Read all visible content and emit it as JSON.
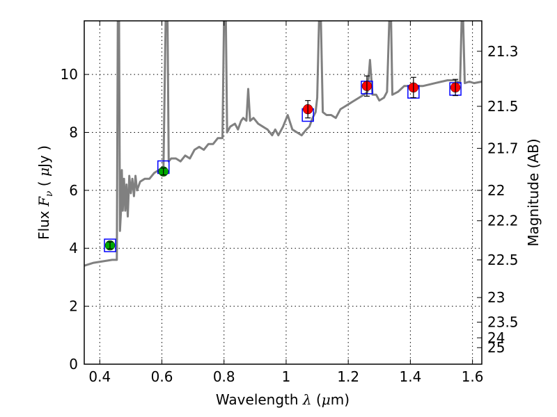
{
  "chart_data": {
    "type": "line",
    "xlabel": "Wavelength  λ (μm)",
    "ylabel": "Flux  F_ν  ( μJy )",
    "ylabel_right": "Magnitude (AB)",
    "xlim": [
      0.35,
      1.63
    ],
    "ylim": [
      0,
      11.85
    ],
    "grid": true,
    "grid_style": "dotted",
    "x_ticks": [
      0.4,
      0.6,
      0.8,
      1.0,
      1.2,
      1.4,
      1.6
    ],
    "x_tick_labels": [
      "0.4",
      "0.6",
      "0.8",
      "1",
      "1.2",
      "1.4",
      "1.6"
    ],
    "y_ticks": [
      0,
      2,
      4,
      6,
      8,
      10
    ],
    "y_tick_labels": [
      "0",
      "2",
      "4",
      "6",
      "8",
      "10"
    ],
    "right_ticks_flux": [
      10.8,
      8.9,
      7.45,
      6.0,
      4.95,
      3.6,
      2.3,
      1.45,
      0.91,
      0.57
    ],
    "right_tick_labels": [
      "21.3",
      "21.5",
      "21.7",
      "22",
      "22.2",
      "22.5",
      "23",
      "23.5",
      "24",
      "25"
    ],
    "colors": {
      "model": "#808080",
      "model_box": "#0000ff",
      "green_point": "#00aa00",
      "red_point": "#ff0000",
      "errorbar": "#000000"
    },
    "series": [
      {
        "kind": "model_spectrum",
        "points": [
          [
            0.35,
            3.4
          ],
          [
            0.38,
            3.5
          ],
          [
            0.41,
            3.55
          ],
          [
            0.44,
            3.6
          ],
          [
            0.455,
            3.6
          ],
          [
            0.458,
            11.85
          ],
          [
            0.462,
            11.85
          ],
          [
            0.465,
            4.6
          ],
          [
            0.468,
            5.2
          ],
          [
            0.471,
            6.7
          ],
          [
            0.474,
            5.3
          ],
          [
            0.478,
            6.4
          ],
          [
            0.482,
            5.3
          ],
          [
            0.486,
            6.2
          ],
          [
            0.49,
            5.1
          ],
          [
            0.495,
            6.5
          ],
          [
            0.5,
            5.9
          ],
          [
            0.505,
            6.4
          ],
          [
            0.51,
            5.8
          ],
          [
            0.515,
            6.5
          ],
          [
            0.52,
            6.0
          ],
          [
            0.53,
            6.3
          ],
          [
            0.545,
            6.4
          ],
          [
            0.56,
            6.4
          ],
          [
            0.575,
            6.6
          ],
          [
            0.59,
            6.7
          ],
          [
            0.605,
            6.8
          ],
          [
            0.612,
            11.85
          ],
          [
            0.618,
            11.85
          ],
          [
            0.622,
            7.0
          ],
          [
            0.63,
            7.1
          ],
          [
            0.645,
            7.1
          ],
          [
            0.66,
            7.0
          ],
          [
            0.675,
            7.2
          ],
          [
            0.69,
            7.1
          ],
          [
            0.705,
            7.4
          ],
          [
            0.72,
            7.5
          ],
          [
            0.735,
            7.4
          ],
          [
            0.75,
            7.6
          ],
          [
            0.765,
            7.6
          ],
          [
            0.78,
            7.8
          ],
          [
            0.795,
            7.8
          ],
          [
            0.8,
            11.85
          ],
          [
            0.806,
            11.85
          ],
          [
            0.81,
            8.0
          ],
          [
            0.82,
            8.2
          ],
          [
            0.835,
            8.3
          ],
          [
            0.845,
            8.1
          ],
          [
            0.855,
            8.4
          ],
          [
            0.862,
            8.5
          ],
          [
            0.872,
            8.4
          ],
          [
            0.878,
            9.5
          ],
          [
            0.884,
            8.4
          ],
          [
            0.895,
            8.5
          ],
          [
            0.91,
            8.3
          ],
          [
            0.925,
            8.2
          ],
          [
            0.94,
            8.1
          ],
          [
            0.955,
            7.9
          ],
          [
            0.965,
            8.1
          ],
          [
            0.975,
            7.9
          ],
          [
            0.99,
            8.2
          ],
          [
            1.005,
            8.6
          ],
          [
            1.02,
            8.1
          ],
          [
            1.035,
            8.0
          ],
          [
            1.05,
            7.9
          ],
          [
            1.065,
            8.1
          ],
          [
            1.075,
            8.2
          ],
          [
            1.085,
            8.5
          ],
          [
            1.095,
            8.7
          ],
          [
            1.1,
            9.2
          ],
          [
            1.106,
            11.85
          ],
          [
            1.112,
            11.85
          ],
          [
            1.118,
            8.7
          ],
          [
            1.13,
            8.6
          ],
          [
            1.145,
            8.6
          ],
          [
            1.16,
            8.5
          ],
          [
            1.175,
            8.8
          ],
          [
            1.19,
            8.9
          ],
          [
            1.205,
            9.0
          ],
          [
            1.22,
            9.1
          ],
          [
            1.235,
            9.2
          ],
          [
            1.25,
            9.3
          ],
          [
            1.262,
            9.4
          ],
          [
            1.27,
            10.5
          ],
          [
            1.278,
            9.3
          ],
          [
            1.29,
            9.3
          ],
          [
            1.3,
            9.1
          ],
          [
            1.315,
            9.2
          ],
          [
            1.325,
            9.4
          ],
          [
            1.332,
            11.85
          ],
          [
            1.338,
            11.85
          ],
          [
            1.342,
            9.3
          ],
          [
            1.36,
            9.4
          ],
          [
            1.38,
            9.6
          ],
          [
            1.4,
            9.6
          ],
          [
            1.42,
            9.6
          ],
          [
            1.44,
            9.6
          ],
          [
            1.46,
            9.65
          ],
          [
            1.48,
            9.7
          ],
          [
            1.5,
            9.75
          ],
          [
            1.52,
            9.8
          ],
          [
            1.545,
            9.8
          ],
          [
            1.56,
            9.7
          ],
          [
            1.565,
            11.85
          ],
          [
            1.57,
            11.85
          ],
          [
            1.575,
            9.7
          ],
          [
            1.59,
            9.75
          ],
          [
            1.605,
            9.7
          ],
          [
            1.63,
            9.75
          ]
        ]
      },
      {
        "kind": "model_band_flux",
        "points": [
          [
            0.433,
            4.1
          ],
          [
            0.605,
            6.8
          ],
          [
            1.07,
            8.6
          ],
          [
            1.26,
            9.55
          ],
          [
            1.41,
            9.4
          ],
          [
            1.545,
            9.5
          ]
        ]
      },
      {
        "kind": "observed_green",
        "points": [
          {
            "x": 0.433,
            "y": 4.1,
            "err": 0.12
          },
          {
            "x": 0.605,
            "y": 6.65,
            "err": 0.12
          }
        ]
      },
      {
        "kind": "observed_red",
        "points": [
          {
            "x": 1.07,
            "y": 8.8,
            "err": 0.3
          },
          {
            "x": 1.26,
            "y": 9.6,
            "err": 0.35
          },
          {
            "x": 1.41,
            "y": 9.55,
            "err": 0.35
          },
          {
            "x": 1.545,
            "y": 9.55,
            "err": 0.28
          }
        ]
      }
    ]
  }
}
